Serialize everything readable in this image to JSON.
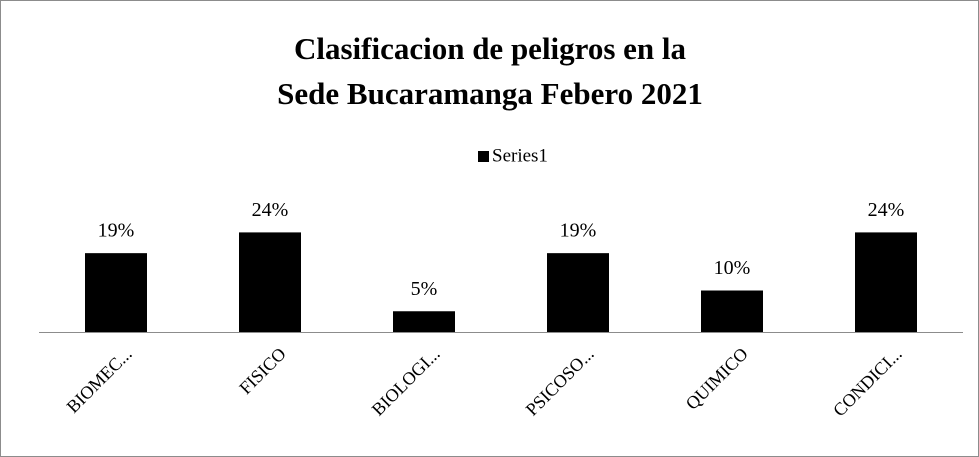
{
  "chart_data": {
    "type": "bar",
    "title": [
      "Clasificacion de peligros en la",
      "Sede Bucaramanga Febero 2021"
    ],
    "categories": [
      "BIOMEC...",
      "FISICO",
      "BIOLOGI...",
      "PSICOSO...",
      "QUIMICO",
      "CONDICI..."
    ],
    "series": [
      {
        "name": "Series1",
        "color": "#000000",
        "values": [
          19,
          24,
          5,
          19,
          10,
          24
        ],
        "value_labels": [
          "19%",
          "24%",
          "5%",
          "19%",
          "10%",
          "24%"
        ]
      }
    ],
    "legend": "top",
    "grid": false
  }
}
